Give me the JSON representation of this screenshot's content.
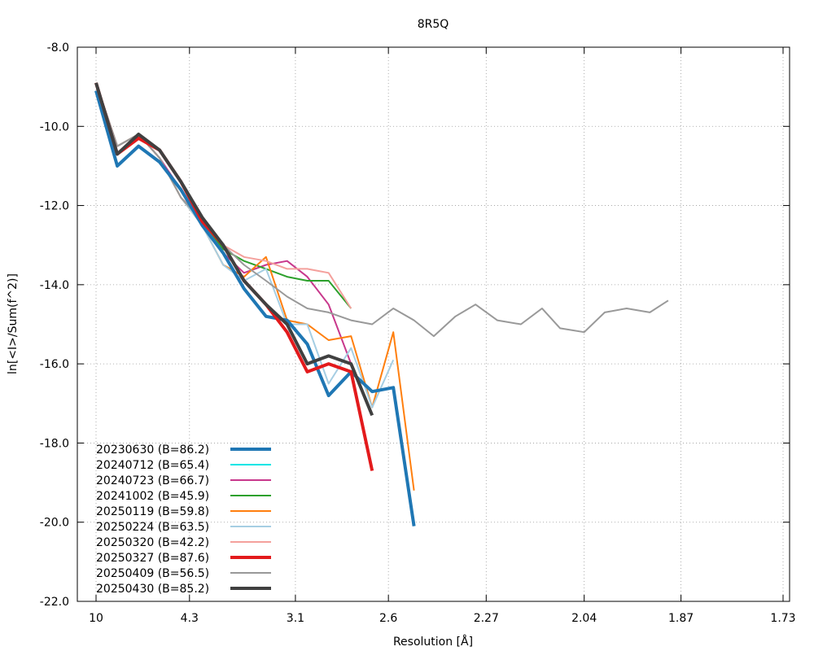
{
  "chart_data": {
    "type": "line",
    "title": "8R5Q",
    "xlabel": "Resolution [Å]",
    "ylabel": "ln[<I>/Sum(f^2)]",
    "x_scale": "inverse-square-resolution",
    "x_ticks": [
      "10",
      "4.3",
      "3.1",
      "2.6",
      "2.27",
      "2.04",
      "1.87",
      "1.73"
    ],
    "xlim_resolution": [
      10,
      1.73
    ],
    "ylim": [
      -22,
      -8
    ],
    "y_ticks": [
      "-8.0",
      "-10.0",
      "-12.0",
      "-14.0",
      "-16.0",
      "-18.0",
      "-20.0",
      "-22.0"
    ],
    "grid": true,
    "legend_position": "bottom-left",
    "series": [
      {
        "name": "20230630 (B=86.2)",
        "color": "#1f77b4",
        "width": 4,
        "x": [
          10,
          7.07,
          5.77,
          5.0,
          4.47,
          4.08,
          3.78,
          3.54,
          3.33,
          3.16,
          3.02,
          2.89,
          2.77,
          2.67,
          2.58,
          2.5,
          2.43,
          2.36,
          2.3
        ],
        "y": [
          -9.1,
          -11.0,
          -10.5,
          -10.9,
          -11.6,
          -12.5,
          -13.2,
          -14.1,
          -14.8,
          -14.9,
          -15.5,
          -16.8,
          -16.2,
          -16.7,
          -16.6,
          -20.1,
          null,
          null,
          null
        ]
      },
      {
        "name": "20240712 (B=65.4)",
        "color": "#00e5e5",
        "width": 2,
        "x": [],
        "y": []
      },
      {
        "name": "20240723 (B=66.7)",
        "color": "#c8388c",
        "width": 2,
        "x": [
          10,
          7.07,
          5.77,
          5.0,
          4.47,
          4.08,
          3.78,
          3.54,
          3.33,
          3.16,
          3.02,
          2.89,
          2.77,
          2.67,
          2.58
        ],
        "y": [
          -8.9,
          -10.5,
          -10.2,
          -10.8,
          -11.6,
          -12.5,
          -13.2,
          -13.7,
          -13.5,
          -13.4,
          -13.8,
          -14.5,
          -16.0,
          null,
          null
        ]
      },
      {
        "name": "20241002 (B=45.9)",
        "color": "#2ca02c",
        "width": 2,
        "x": [
          10,
          7.07,
          5.77,
          5.0,
          4.47,
          4.08,
          3.78,
          3.54,
          3.33,
          3.16,
          3.02,
          2.89,
          2.77,
          2.67,
          2.58,
          2.5,
          2.43,
          2.36
        ],
        "y": [
          -8.9,
          -10.5,
          -10.2,
          -10.8,
          -11.8,
          -12.4,
          -13.1,
          -13.4,
          -13.6,
          -13.8,
          -13.9,
          -13.9,
          -14.6,
          null,
          null,
          null,
          null,
          null
        ]
      },
      {
        "name": "20250119 (B=59.8)",
        "color": "#ff7f0e",
        "width": 2,
        "x": [
          10,
          7.07,
          5.77,
          5.0,
          4.47,
          4.08,
          3.78,
          3.54,
          3.33,
          3.16,
          3.02,
          2.89,
          2.77,
          2.67,
          2.58,
          2.5,
          2.43,
          2.36
        ],
        "y": [
          -8.9,
          -10.5,
          -10.2,
          -10.8,
          -11.8,
          -12.5,
          -13.5,
          -13.8,
          -13.3,
          -14.9,
          -15.0,
          -15.4,
          -15.3,
          -17.1,
          -15.2,
          -19.2,
          null,
          null
        ]
      },
      {
        "name": "20250224 (B=63.5)",
        "color": "#a6cee3",
        "width": 2,
        "x": [
          10,
          7.07,
          5.77,
          5.0,
          4.47,
          4.08,
          3.78,
          3.54,
          3.33,
          3.16,
          3.02,
          2.89,
          2.77,
          2.67,
          2.58,
          2.5
        ],
        "y": [
          -8.9,
          -10.5,
          -10.2,
          -10.8,
          -11.8,
          -12.5,
          -13.5,
          -13.9,
          -13.6,
          -15.0,
          -15.0,
          -16.5,
          -15.6,
          -17.1,
          -15.9,
          null
        ]
      },
      {
        "name": "20250320 (B=42.2)",
        "color": "#f4a09c",
        "width": 2,
        "x": [
          10,
          7.07,
          5.77,
          5.0,
          4.47,
          4.08,
          3.78,
          3.54,
          3.33,
          3.16,
          3.02,
          2.89,
          2.77,
          2.67
        ],
        "y": [
          -8.9,
          -10.5,
          -10.2,
          -10.8,
          -11.8,
          -12.3,
          -13.0,
          -13.3,
          -13.4,
          -13.6,
          -13.6,
          -13.7,
          -14.6,
          null
        ]
      },
      {
        "name": "20250327 (B=87.6)",
        "color": "#e31a1c",
        "width": 4,
        "x": [
          10,
          7.07,
          5.77,
          5.0,
          4.47,
          4.08,
          3.78,
          3.54,
          3.33,
          3.16,
          3.02,
          2.89,
          2.77,
          2.67,
          2.58,
          2.5
        ],
        "y": [
          -8.9,
          -10.7,
          -10.3,
          -10.6,
          -11.4,
          -12.4,
          -13.0,
          -13.9,
          -14.5,
          -15.2,
          -16.2,
          -16.0,
          -16.2,
          -18.7,
          null,
          null
        ]
      },
      {
        "name": "20250409 (B=56.5)",
        "color": "#999999",
        "width": 2,
        "x": [
          10,
          7.07,
          5.77,
          5.0,
          4.47,
          4.08,
          3.78,
          3.54,
          3.33,
          3.16,
          3.02,
          2.89,
          2.77,
          2.67,
          2.58,
          2.5,
          2.43,
          2.36,
          2.3,
          2.24,
          2.18,
          2.13,
          2.09,
          2.04,
          2.0,
          1.96,
          1.92,
          1.89,
          1.86,
          1.83,
          1.8,
          1.77,
          1.73
        ],
        "y": [
          -8.9,
          -10.5,
          -10.2,
          -10.8,
          -11.8,
          -12.4,
          -13.0,
          -13.5,
          -13.9,
          -14.3,
          -14.6,
          -14.7,
          -14.9,
          -15.0,
          -14.6,
          -14.9,
          -15.3,
          -14.8,
          -14.5,
          -14.9,
          -15.0,
          -14.6,
          -15.1,
          -15.2,
          -14.7,
          -14.6,
          -14.7,
          -14.4,
          null,
          null,
          null,
          null,
          null
        ]
      },
      {
        "name": "20250430 (B=85.2)",
        "color": "#404040",
        "width": 4,
        "x": [
          10,
          7.07,
          5.77,
          5.0,
          4.47,
          4.08,
          3.78,
          3.54,
          3.33,
          3.16,
          3.02,
          2.89,
          2.77,
          2.67,
          2.58,
          2.5
        ],
        "y": [
          -8.9,
          -10.7,
          -10.2,
          -10.6,
          -11.4,
          -12.3,
          -13.0,
          -13.9,
          -14.5,
          -15.0,
          -16.0,
          -15.8,
          -16.0,
          -17.3,
          null,
          null
        ]
      }
    ]
  }
}
